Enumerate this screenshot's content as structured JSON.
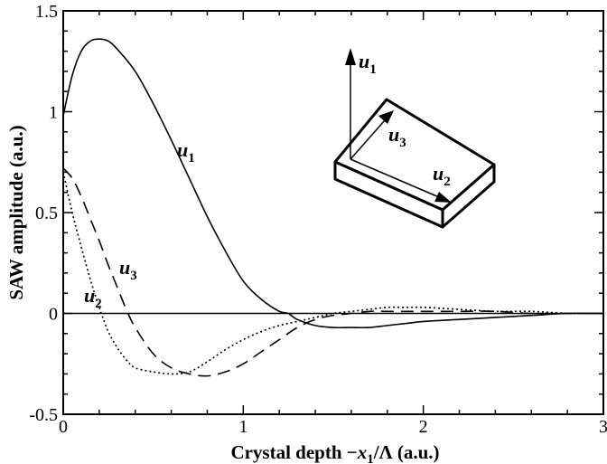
{
  "chart_data": {
    "type": "line",
    "title": "",
    "xlabel": "Crystal depth −x₁/Λ (a.u.)",
    "xlabel_parts": {
      "prefix": "Crystal depth −",
      "var": "x",
      "sub": "1",
      "suffix": "/Λ (a.u.)"
    },
    "ylabel": "SAW amplitude (a.u.)",
    "xlim": [
      0,
      3
    ],
    "ylim": [
      -0.5,
      1.5
    ],
    "x_ticks": [
      "0",
      "1",
      "2",
      "3"
    ],
    "y_ticks": [
      "-0.5",
      "0",
      "0.5",
      "1",
      "1.5"
    ],
    "x_tick_values": [
      0,
      1,
      2,
      3
    ],
    "y_tick_values": [
      -0.5,
      0,
      0.5,
      1,
      1.5
    ],
    "grid": false,
    "zero_line": true,
    "series": [
      {
        "name": "u1",
        "label_var": "u",
        "label_sub": "1",
        "style": "solid",
        "x": [
          0,
          0.05,
          0.1,
          0.15,
          0.2,
          0.25,
          0.3,
          0.4,
          0.5,
          0.6,
          0.7,
          0.8,
          0.9,
          1.0,
          1.1,
          1.2,
          1.25,
          1.3,
          1.4,
          1.5,
          1.6,
          1.7,
          1.8,
          1.9,
          2.0,
          2.2,
          2.4,
          2.6,
          2.8,
          3.0
        ],
        "y": [
          0.98,
          1.18,
          1.3,
          1.35,
          1.36,
          1.35,
          1.31,
          1.2,
          1.04,
          0.86,
          0.67,
          0.48,
          0.31,
          0.16,
          0.07,
          0.01,
          0.0,
          -0.03,
          -0.06,
          -0.07,
          -0.07,
          -0.07,
          -0.06,
          -0.05,
          -0.04,
          -0.03,
          -0.02,
          -0.01,
          0.0,
          0.0
        ]
      },
      {
        "name": "u2",
        "label_var": "u",
        "label_sub": "2",
        "style": "dotted",
        "x": [
          0,
          0.05,
          0.1,
          0.15,
          0.2,
          0.25,
          0.3,
          0.35,
          0.4,
          0.5,
          0.6,
          0.7,
          0.8,
          0.9,
          1.0,
          1.1,
          1.2,
          1.3,
          1.4,
          1.5,
          1.6,
          1.7,
          1.8,
          1.9,
          2.0,
          2.2,
          2.4,
          2.6,
          2.8,
          3.0
        ],
        "y": [
          0.7,
          0.5,
          0.33,
          0.17,
          0.03,
          -0.09,
          -0.17,
          -0.23,
          -0.27,
          -0.29,
          -0.3,
          -0.29,
          -0.24,
          -0.18,
          -0.13,
          -0.09,
          -0.06,
          -0.04,
          -0.02,
          0.0,
          0.01,
          0.02,
          0.03,
          0.03,
          0.03,
          0.02,
          0.01,
          0.01,
          0.0,
          0.0
        ]
      },
      {
        "name": "u3",
        "label_var": "u",
        "label_sub": "3",
        "style": "dashed",
        "x": [
          0,
          0.05,
          0.1,
          0.15,
          0.2,
          0.25,
          0.3,
          0.35,
          0.4,
          0.5,
          0.6,
          0.7,
          0.8,
          0.9,
          1.0,
          1.1,
          1.2,
          1.3,
          1.4,
          1.5,
          1.6,
          1.7,
          1.8,
          1.9,
          2.0,
          2.2,
          2.4,
          2.6,
          2.8,
          3.0
        ],
        "y": [
          0.72,
          0.67,
          0.58,
          0.47,
          0.36,
          0.24,
          0.13,
          0.02,
          -0.07,
          -0.2,
          -0.27,
          -0.3,
          -0.31,
          -0.29,
          -0.25,
          -0.19,
          -0.13,
          -0.07,
          -0.03,
          -0.01,
          0.0,
          0.01,
          0.01,
          0.01,
          0.01,
          0.01,
          0.01,
          0.0,
          0.0,
          0.0
        ]
      }
    ]
  },
  "inset": {
    "labels": [
      {
        "var": "u",
        "sub": "1"
      },
      {
        "var": "u",
        "sub": "3"
      },
      {
        "var": "u",
        "sub": "2"
      }
    ]
  }
}
